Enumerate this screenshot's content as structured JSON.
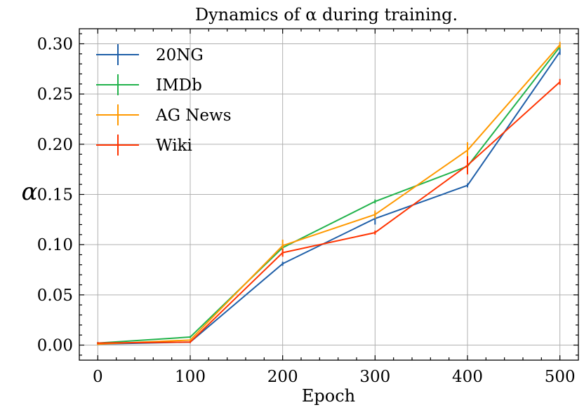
{
  "chart_data": {
    "type": "line",
    "title": "Dynamics of α during training.",
    "xlabel": "Epoch",
    "ylabel": "α",
    "x": [
      0,
      100,
      200,
      300,
      400,
      500
    ],
    "xlim": [
      -20,
      520
    ],
    "ylim": [
      -0.015,
      0.315
    ],
    "xticks": [
      0,
      100,
      200,
      300,
      400,
      500
    ],
    "yticks": [
      0.0,
      0.05,
      0.1,
      0.15,
      0.2,
      0.25,
      0.3
    ],
    "xtick_labels": [
      "0",
      "100",
      "200",
      "300",
      "400",
      "500"
    ],
    "ytick_labels": [
      "0.00",
      "0.05",
      "0.10",
      "0.15",
      "0.20",
      "0.25",
      "0.30"
    ],
    "grid": true,
    "legend_position": "top-left",
    "series": [
      {
        "name": "20NG",
        "color": "#1f5fa8",
        "values": [
          0.001,
          0.003,
          0.081,
          0.126,
          0.159,
          0.292
        ],
        "errors": [
          0.001,
          0.001,
          0.002,
          0.006,
          0.002,
          0.003
        ]
      },
      {
        "name": "IMDb",
        "color": "#22b34c",
        "values": [
          0.002,
          0.008,
          0.097,
          0.143,
          0.178,
          0.297
        ],
        "errors": [
          0.001,
          0.001,
          0.002,
          0.002,
          0.002,
          0.002
        ]
      },
      {
        "name": "AG News",
        "color": "#ff9900",
        "values": [
          0.001,
          0.005,
          0.099,
          0.13,
          0.194,
          0.299
        ],
        "errors": [
          0.001,
          0.001,
          0.006,
          0.004,
          0.008,
          0.003
        ]
      },
      {
        "name": "Wiki",
        "color": "#ff3300",
        "values": [
          0.002,
          0.003,
          0.092,
          0.112,
          0.179,
          0.262
        ],
        "errors": [
          0.001,
          0.001,
          0.004,
          0.002,
          0.009,
          0.003
        ]
      }
    ]
  }
}
